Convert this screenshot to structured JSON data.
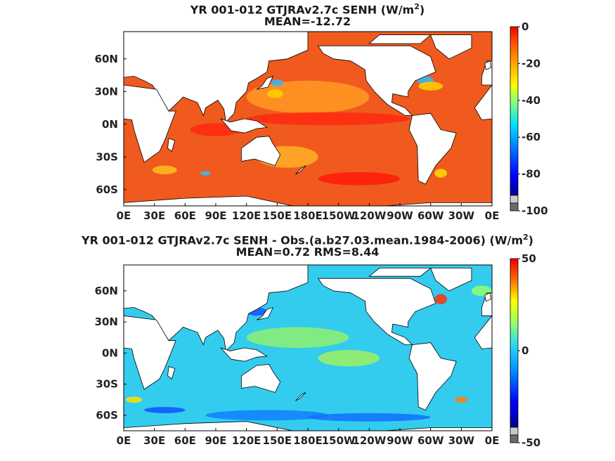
{
  "chart_data": [
    {
      "type": "heatmap",
      "title_prefix": "YR 001-012 GTJRAv2.7c  SENH (W/m",
      "title_sup": "2",
      "title_suffix": ")",
      "subtitle": "MEAN=-12.72",
      "x_ticks": [
        "0E",
        "30E",
        "60E",
        "90E",
        "120E",
        "150E",
        "180E",
        "150W",
        "120W",
        "90W",
        "60W",
        "30W",
        "0E"
      ],
      "y_ticks": [
        "60N",
        "30N",
        "0N",
        "30S",
        "60S"
      ],
      "y_tick_lats": [
        60,
        30,
        0,
        -30,
        -60
      ],
      "xlim": [
        0,
        360
      ],
      "ylim": [
        -85,
        85
      ],
      "colorbar": {
        "min": -100,
        "max": 0,
        "ticks": [
          "0",
          "-20",
          "-40",
          "-60",
          "-80",
          "-100"
        ],
        "tick_values": [
          0,
          -20,
          -40,
          -60,
          -80,
          -100
        ]
      }
    },
    {
      "type": "heatmap",
      "title_prefix": "YR 001-012 GTJRAv2.7c SENH - Obs.(a.b27.03.mean.1984-2006) (W/m",
      "title_sup": "2",
      "title_suffix": ")",
      "subtitle": "MEAN=0.72 RMS=8.44",
      "x_ticks": [
        "0E",
        "30E",
        "60E",
        "90E",
        "120E",
        "150E",
        "180E",
        "150W",
        "120W",
        "90W",
        "60W",
        "30W",
        "0E"
      ],
      "y_ticks": [
        "60N",
        "30N",
        "0N",
        "30S",
        "60S"
      ],
      "y_tick_lats": [
        60,
        30,
        0,
        -30,
        -60
      ],
      "xlim": [
        0,
        360
      ],
      "ylim": [
        -85,
        85
      ],
      "colorbar": {
        "min": -50,
        "max": 50,
        "ticks": [
          "50",
          "0",
          "-50"
        ],
        "tick_values": [
          50,
          0,
          -50
        ]
      }
    }
  ],
  "colors": {
    "land": "#ffffff",
    "frame": "#000000",
    "top_ocean_base": "#f05a1e",
    "bottom_ocean_base": "#33ccee"
  }
}
